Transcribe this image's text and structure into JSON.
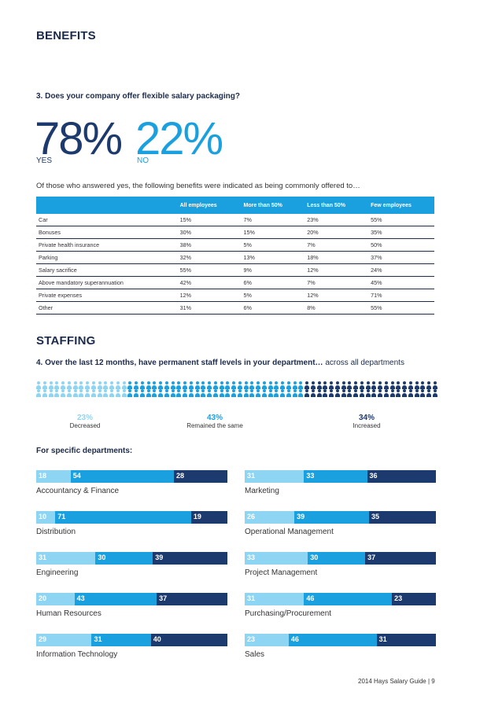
{
  "benefits": {
    "title": "BENEFITS",
    "question": "3. Does your company offer flexible salary packaging?",
    "yes_pct": "78%",
    "yes_label": "YES",
    "no_pct": "22%",
    "no_label": "NO",
    "lead": "Of those who answered yes, the following benefits were indicated as being commonly offered to…",
    "table": {
      "headers": [
        "",
        "All employees",
        "More than 50%",
        "Less than 50%",
        "Few employees"
      ],
      "rows": [
        [
          "Car",
          "15%",
          "7%",
          "23%",
          "55%"
        ],
        [
          "Bonuses",
          "30%",
          "15%",
          "20%",
          "35%"
        ],
        [
          "Private health insurance",
          "38%",
          "5%",
          "7%",
          "50%"
        ],
        [
          "Parking",
          "32%",
          "13%",
          "18%",
          "37%"
        ],
        [
          "Salary sacrifice",
          "55%",
          "9%",
          "12%",
          "24%"
        ],
        [
          "Above mandatory superannuation",
          "42%",
          "6%",
          "7%",
          "45%"
        ],
        [
          "Private expenses",
          "12%",
          "5%",
          "12%",
          "71%"
        ],
        [
          "Other",
          "31%",
          "6%",
          "8%",
          "55%"
        ]
      ]
    }
  },
  "staffing": {
    "title": "STAFFING",
    "question_bold": "4. Over the last 12 months, have permanent staff levels in your department…",
    "question_rest": " across all departments",
    "overall": [
      {
        "pct": "23%",
        "label": "Decreased",
        "value": 23
      },
      {
        "pct": "43%",
        "label": "Remained the same",
        "value": 43
      },
      {
        "pct": "34%",
        "label": "Increased",
        "value": 34
      }
    ],
    "specific_title": "For specific departments:",
    "departments": [
      {
        "name": "Accountancy & Finance",
        "values": [
          18,
          54,
          28
        ]
      },
      {
        "name": "Marketing",
        "values": [
          31,
          33,
          36
        ]
      },
      {
        "name": "Distribution",
        "values": [
          10,
          71,
          19
        ]
      },
      {
        "name": "Operational Management",
        "values": [
          26,
          39,
          35
        ]
      },
      {
        "name": "Engineering",
        "values": [
          31,
          30,
          39
        ]
      },
      {
        "name": "Project Management",
        "values": [
          33,
          30,
          37
        ]
      },
      {
        "name": "Human Resources",
        "values": [
          20,
          43,
          37
        ]
      },
      {
        "name": "Purchasing/Procurement",
        "values": [
          31,
          46,
          23
        ]
      },
      {
        "name": "Information Technology",
        "values": [
          29,
          31,
          40
        ]
      },
      {
        "name": "Sales",
        "values": [
          23,
          46,
          31
        ]
      }
    ]
  },
  "colors": {
    "light": "#8ed4f3",
    "mid": "#1aa0df",
    "dark": "#1c3a6e"
  },
  "footer": "2014 Hays Salary Guide | 9"
}
